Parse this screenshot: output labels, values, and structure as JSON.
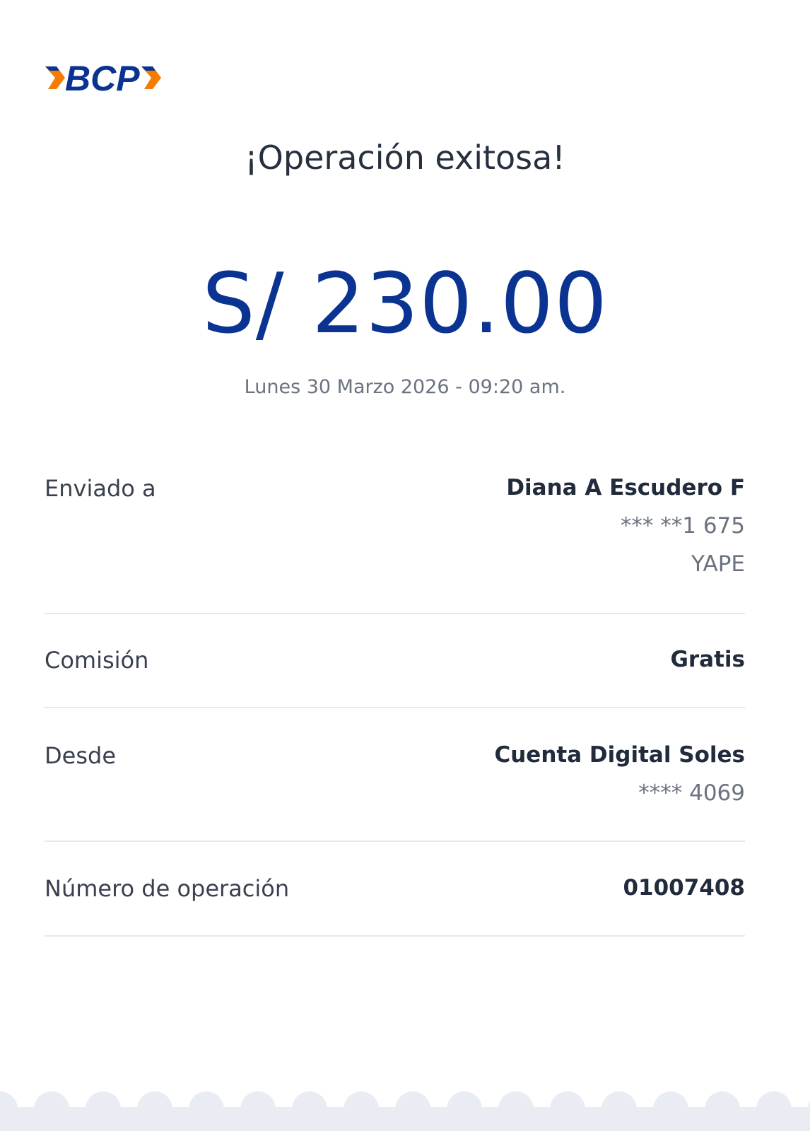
{
  "brand": {
    "logo_text": "BCP",
    "colors": {
      "blue": "#0b3391",
      "orange": "#f57c00"
    }
  },
  "title": "¡Operación exitosa!",
  "amount": "S/ 230.00",
  "datetime": "Lunes 30 Marzo 2026 - 09:20 am.",
  "details": {
    "sent_to": {
      "label": "Enviado a",
      "name": "Diana A Escudero F",
      "phone": "*** **1 675",
      "service": "YAPE"
    },
    "commission": {
      "label": "Comisión",
      "value": "Gratis"
    },
    "from": {
      "label": "Desde",
      "account": "Cuenta Digital Soles",
      "number": "**** 4069"
    },
    "operation": {
      "label": "Número de operación",
      "value": "01007408"
    }
  }
}
